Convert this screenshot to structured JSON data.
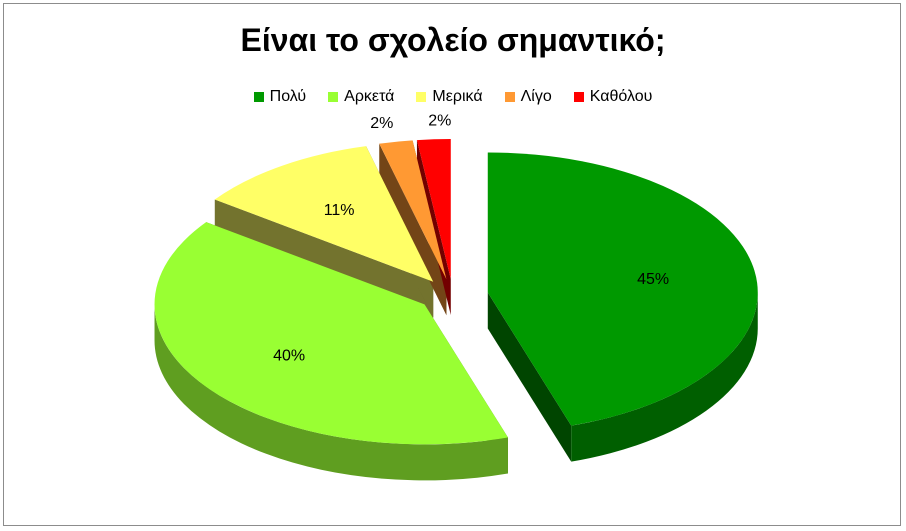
{
  "chart_data": {
    "type": "pie",
    "title": "Είναι το σχολείο σημαντικό;",
    "legend_position": "top",
    "slices": [
      {
        "name": "Πολύ",
        "value": 45,
        "label": "45%",
        "color": "#009900"
      },
      {
        "name": "Αρκετά",
        "value": 40,
        "label": "40%",
        "color": "#99ff33"
      },
      {
        "name": "Μερικά",
        "value": 11,
        "label": "11%",
        "color": "#ffff66"
      },
      {
        "name": "Λίγο",
        "value": 2,
        "label": "2%",
        "color": "#ff9933"
      },
      {
        "name": "Καθόλου",
        "value": 2,
        "label": "2%",
        "color": "#ff0000"
      }
    ]
  }
}
